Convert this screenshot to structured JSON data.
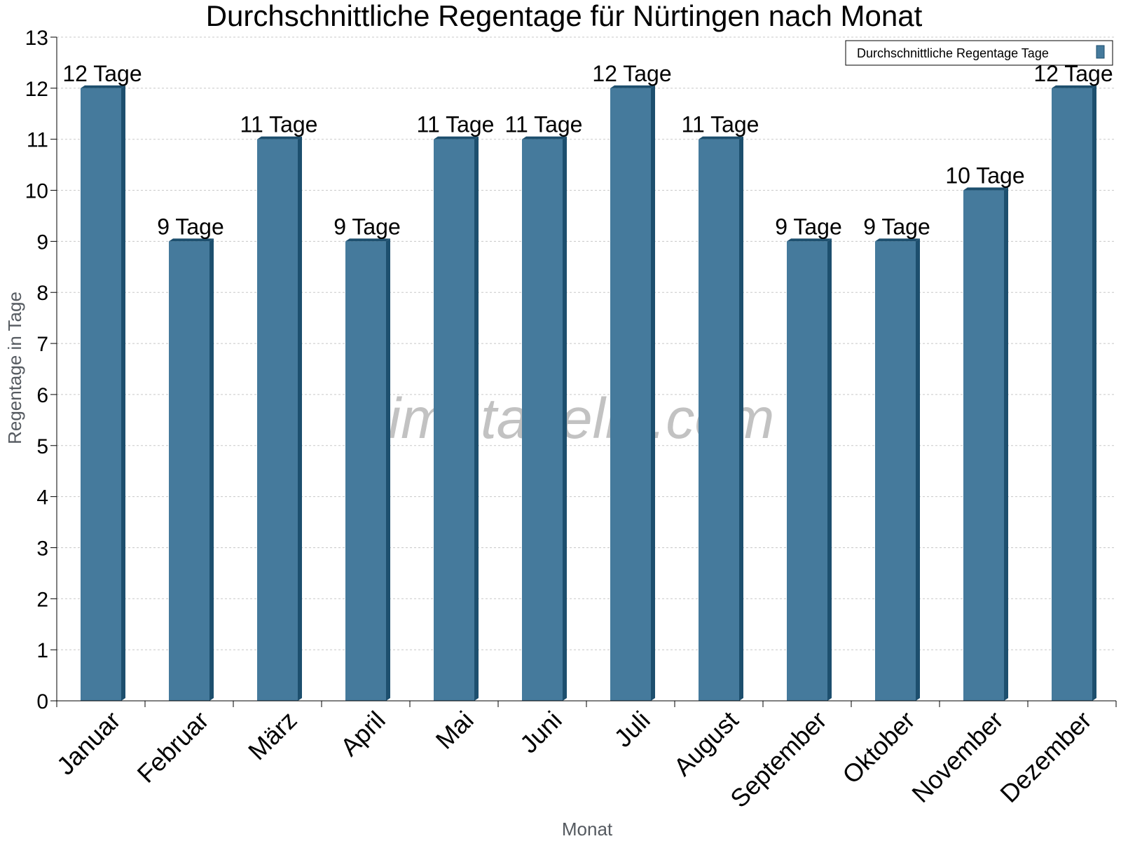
{
  "chart_data": {
    "type": "bar",
    "title": "Durchschnittliche Regentage für Nürtingen nach Monat",
    "xlabel": "Monat",
    "ylabel": "Regentage in Tage",
    "ylim": [
      0,
      13
    ],
    "yticks": [
      0,
      1,
      2,
      3,
      4,
      5,
      6,
      7,
      8,
      9,
      10,
      11,
      12,
      13
    ],
    "categories": [
      "Januar",
      "Februar",
      "März",
      "April",
      "Mai",
      "Juni",
      "Juli",
      "August",
      "September",
      "Oktober",
      "November",
      "Dezember"
    ],
    "series": [
      {
        "name": "Durchschnittliche Regentage Tage",
        "values": [
          12,
          9,
          11,
          9,
          11,
          11,
          12,
          11,
          9,
          9,
          10,
          12
        ],
        "labels": [
          "12 Tage",
          "9 Tage",
          "11 Tage",
          "9 Tage",
          "11 Tage",
          "11 Tage",
          "12 Tage",
          "11 Tage",
          "9 Tage",
          "9 Tage",
          "10 Tage",
          "12 Tage"
        ],
        "color": "#457a9c",
        "side_color": "#1d4f6e"
      }
    ],
    "grid": true,
    "legend_position": "top-right",
    "watermark": "klimatabelle.com"
  }
}
